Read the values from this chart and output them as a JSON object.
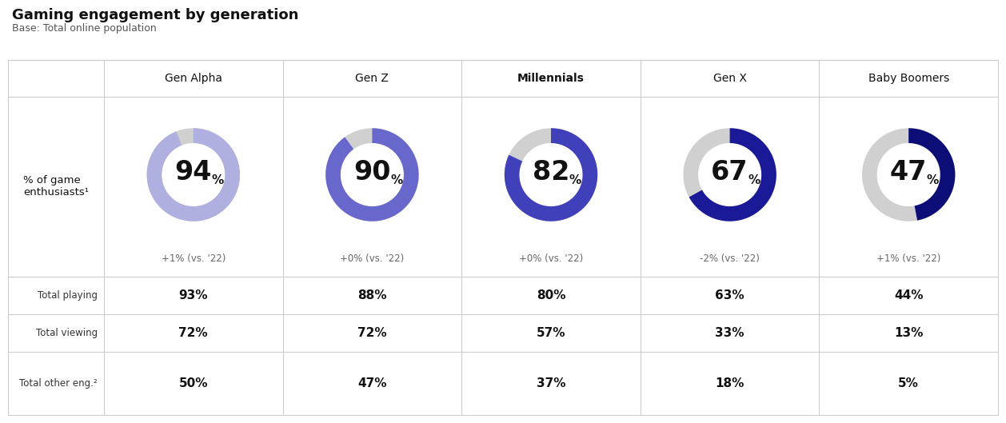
{
  "title": "Gaming engagement by generation",
  "subtitle": "Base: Total online population",
  "columns": [
    "Gen Alpha",
    "Gen Z",
    "Millennials",
    "Gen X",
    "Baby Boomers"
  ],
  "donut_values": [
    94,
    90,
    82,
    67,
    47
  ],
  "donut_colors": [
    "#b0b0e0",
    "#6868cc",
    "#4040bb",
    "#1a1a99",
    "#0d0d77"
  ],
  "donut_bg_color": "#d0d0d0",
  "change_labels": [
    "+1% (vs. '22)",
    "+0% (vs. '22)",
    "+0% (vs. '22)",
    "-2% (vs. '22)",
    "+1% (vs. '22)"
  ],
  "row_labels": [
    "Total playing",
    "Total viewing",
    "Total other eng.²"
  ],
  "row_data": [
    [
      "93%",
      "88%",
      "80%",
      "63%",
      "44%"
    ],
    [
      "72%",
      "72%",
      "57%",
      "33%",
      "13%"
    ],
    [
      "50%",
      "47%",
      "37%",
      "18%",
      "5%"
    ]
  ],
  "left_label": "% of game\nenthusiasts¹",
  "bg_color": "#ffffff",
  "grid_color": "#cccccc",
  "text_color": "#111111",
  "change_color": "#666666",
  "col_header_bold": [
    false,
    false,
    true,
    false,
    false
  ]
}
